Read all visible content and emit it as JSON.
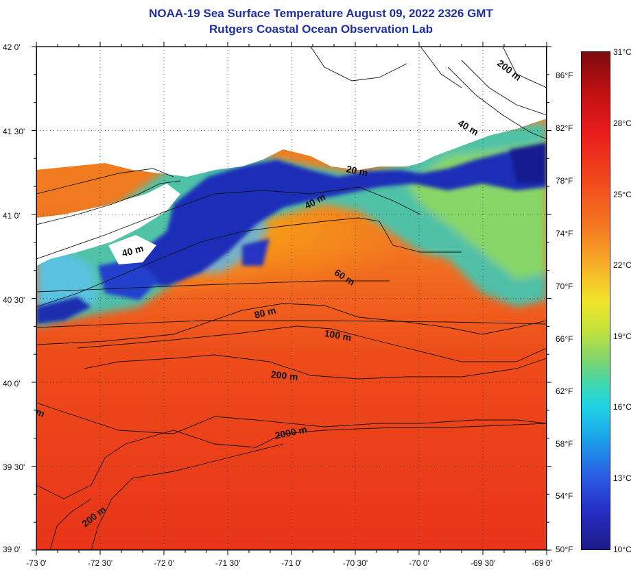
{
  "title": "NOAA-19 Sea Surface Temperature August 09, 2022 2326 GMT",
  "subtitle": "Rutgers Coastal Ocean Observation Lab",
  "map": {
    "projection": "lat-lon",
    "lat_range": [
      39.0,
      42.0
    ],
    "lon_range": [
      -73.0,
      -69.0
    ],
    "grid": "dotted",
    "latitude_labels": [
      "42 0'",
      "41 30'",
      "41 0'",
      "40 30'",
      "40 0'",
      "39 30'",
      "39 0'"
    ],
    "longitude_labels": [
      "-73 0'",
      "-72 30'",
      "-72 0'",
      "-71 30'",
      "-71 0'",
      "-70 30'",
      "-70 0'",
      "-69 30'",
      "-69 0'"
    ],
    "isobath_labels": [
      {
        "text": "200 m",
        "name": "isobath-200m-ne"
      },
      {
        "text": "40 m",
        "name": "isobath-40m-ne"
      },
      {
        "text": "20 m",
        "name": "isobath-20m"
      },
      {
        "text": "40 m",
        "name": "isobath-40m-center"
      },
      {
        "text": "40 m",
        "name": "isobath-40m-west"
      },
      {
        "text": "60 m",
        "name": "isobath-60m"
      },
      {
        "text": "80 m",
        "name": "isobath-80m"
      },
      {
        "text": "100 m",
        "name": "isobath-100m"
      },
      {
        "text": "200 m",
        "name": "isobath-200m"
      },
      {
        "text": "2000 m",
        "name": "isobath-2000m"
      },
      {
        "text": "200 m",
        "name": "isobath-200m-sw"
      },
      {
        "text": "m",
        "name": "isobath-edge-fragment"
      }
    ]
  },
  "colorbar": {
    "fahrenheit_labels": [
      "86°F",
      "82°F",
      "78°F",
      "74°F",
      "70°F",
      "66°F",
      "62°F",
      "58°F",
      "54°F",
      "50°F"
    ],
    "celsius_labels": [
      "31°C",
      "28°C",
      "25°C",
      "22°C",
      "19°C",
      "16°C",
      "13°C",
      "10°C"
    ],
    "range_c": [
      10,
      31
    ],
    "colors": {
      "warm": "#7c0c10",
      "mid": "#f2e52a",
      "cool": "#20d4e3",
      "cold": "#1e1a88"
    }
  }
}
